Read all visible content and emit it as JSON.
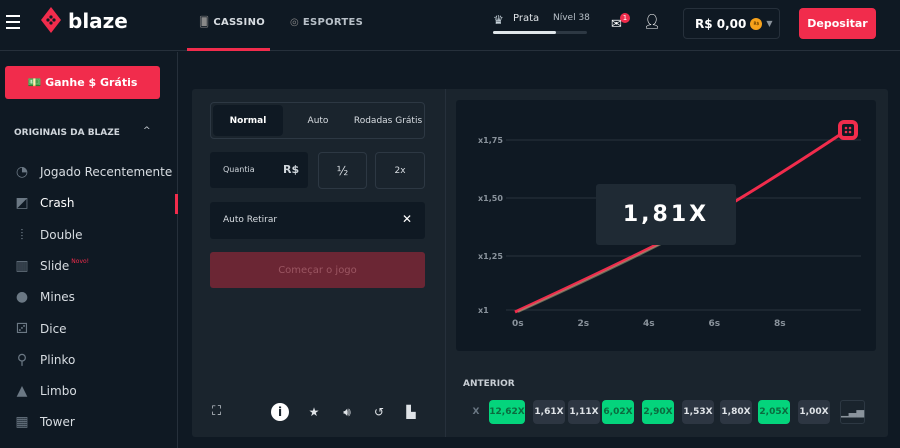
{
  "header": {
    "brand": "blaze",
    "nav": [
      {
        "label": "CASSINO",
        "active": true
      },
      {
        "label": "ESPORTES"
      }
    ],
    "rank": "Prata",
    "level": "Nível 38",
    "level_progress": 0.67,
    "notifications": "1",
    "balance": "R$ 0,00",
    "coin": "R$",
    "deposit": "Depositar"
  },
  "sidebar": {
    "promo": "💵 Ganhe $ Grátis",
    "section": "ORIGINAIS DA BLAZE",
    "items": [
      {
        "label": "Jogado Recentemente",
        "icon": "history-icon"
      },
      {
        "label": "Crash",
        "icon": "crash-icon"
      },
      {
        "label": "Double",
        "icon": "double-icon"
      },
      {
        "label": "Slide",
        "icon": "slide-icon",
        "badge": "Novo!"
      },
      {
        "label": "Mines",
        "icon": "bomb-icon"
      },
      {
        "label": "Dice",
        "icon": "dice-icon"
      },
      {
        "label": "Plinko",
        "icon": "plinko-icon"
      },
      {
        "label": "Limbo",
        "icon": "limbo-icon"
      },
      {
        "label": "Tower",
        "icon": "tower-icon"
      }
    ]
  },
  "controls": {
    "tabs": [
      "Normal",
      "Auto",
      "Rodadas Grátis"
    ],
    "amount_label": "Quantia",
    "currency": "R$",
    "half": "½",
    "double": "2x",
    "auto_cashout": "Auto Retirar",
    "start": "Começar o jogo"
  },
  "game": {
    "multiplier": "1,81X",
    "y_labels": [
      "x1,75",
      "x1,50",
      "x1,25",
      "x1"
    ],
    "x_labels": [
      "0s",
      "2s",
      "4s",
      "6s",
      "8s"
    ],
    "previous_label": "ANTERIOR",
    "history": [
      {
        "v": "12,62X",
        "win": true
      },
      {
        "v": "1,61X",
        "win": false
      },
      {
        "v": "1,11X",
        "win": false
      },
      {
        "v": "6,02X",
        "win": true
      },
      {
        "v": "2,90X",
        "win": true
      },
      {
        "v": "1,53X",
        "win": false
      },
      {
        "v": "1,80X",
        "win": false
      },
      {
        "v": "2,05X",
        "win": true
      },
      {
        "v": "1,00X",
        "win": false
      }
    ],
    "partial_chip": "X"
  },
  "colors": {
    "accent": "#f12c4c",
    "green": "#04d47c"
  }
}
